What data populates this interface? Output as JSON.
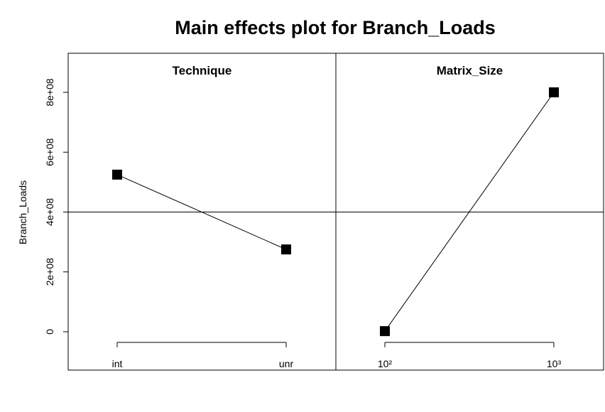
{
  "chart_data": {
    "type": "line",
    "title": "Main effects plot for Branch_Loads",
    "ylabel": "Branch_Loads",
    "ylim": [
      -130000000,
      920000000
    ],
    "yticks": [
      0,
      200000000,
      400000000,
      600000000,
      800000000
    ],
    "ytick_labels": [
      "0",
      "2e+08",
      "4e+08",
      "6e+08",
      "8e+08"
    ],
    "grand_mean": 400000000,
    "grid": false,
    "panels": [
      {
        "factor": "Technique",
        "categories": [
          "int",
          "unr"
        ],
        "values": [
          525000000,
          275000000
        ]
      },
      {
        "factor": "Matrix_Size",
        "categories": [
          "10²",
          "10³"
        ],
        "values": [
          2000000,
          800000000
        ]
      }
    ]
  }
}
